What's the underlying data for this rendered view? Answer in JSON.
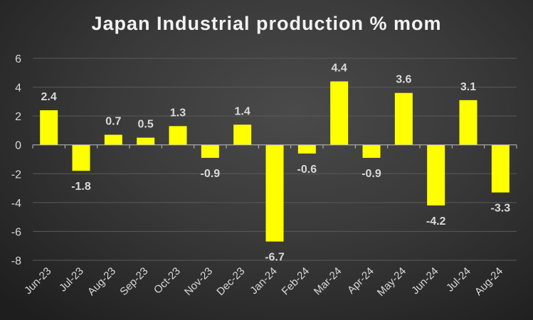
{
  "chart_data": {
    "type": "bar",
    "title": "Japan Industrial production % mom",
    "xlabel": "",
    "ylabel": "",
    "categories": [
      "Jun-23",
      "Jul-23",
      "Aug-23",
      "Sep-23",
      "Oct-23",
      "Nov-23",
      "Dec-23",
      "Jan-24",
      "Feb-24",
      "Mar-24",
      "Apr-24",
      "May-24",
      "Jun-24",
      "Jul-24",
      "Aug-24"
    ],
    "values": [
      2.4,
      -1.8,
      0.7,
      0.5,
      1.3,
      -0.9,
      1.4,
      -6.7,
      -0.6,
      4.4,
      -0.9,
      3.6,
      -4.2,
      3.1,
      -3.3
    ],
    "ylim": [
      -8,
      6
    ],
    "yticks": [
      6,
      4,
      2,
      0,
      -2,
      -4,
      -6,
      -8
    ],
    "grid": true,
    "legend": "none",
    "bar_color": "#ffff00"
  }
}
